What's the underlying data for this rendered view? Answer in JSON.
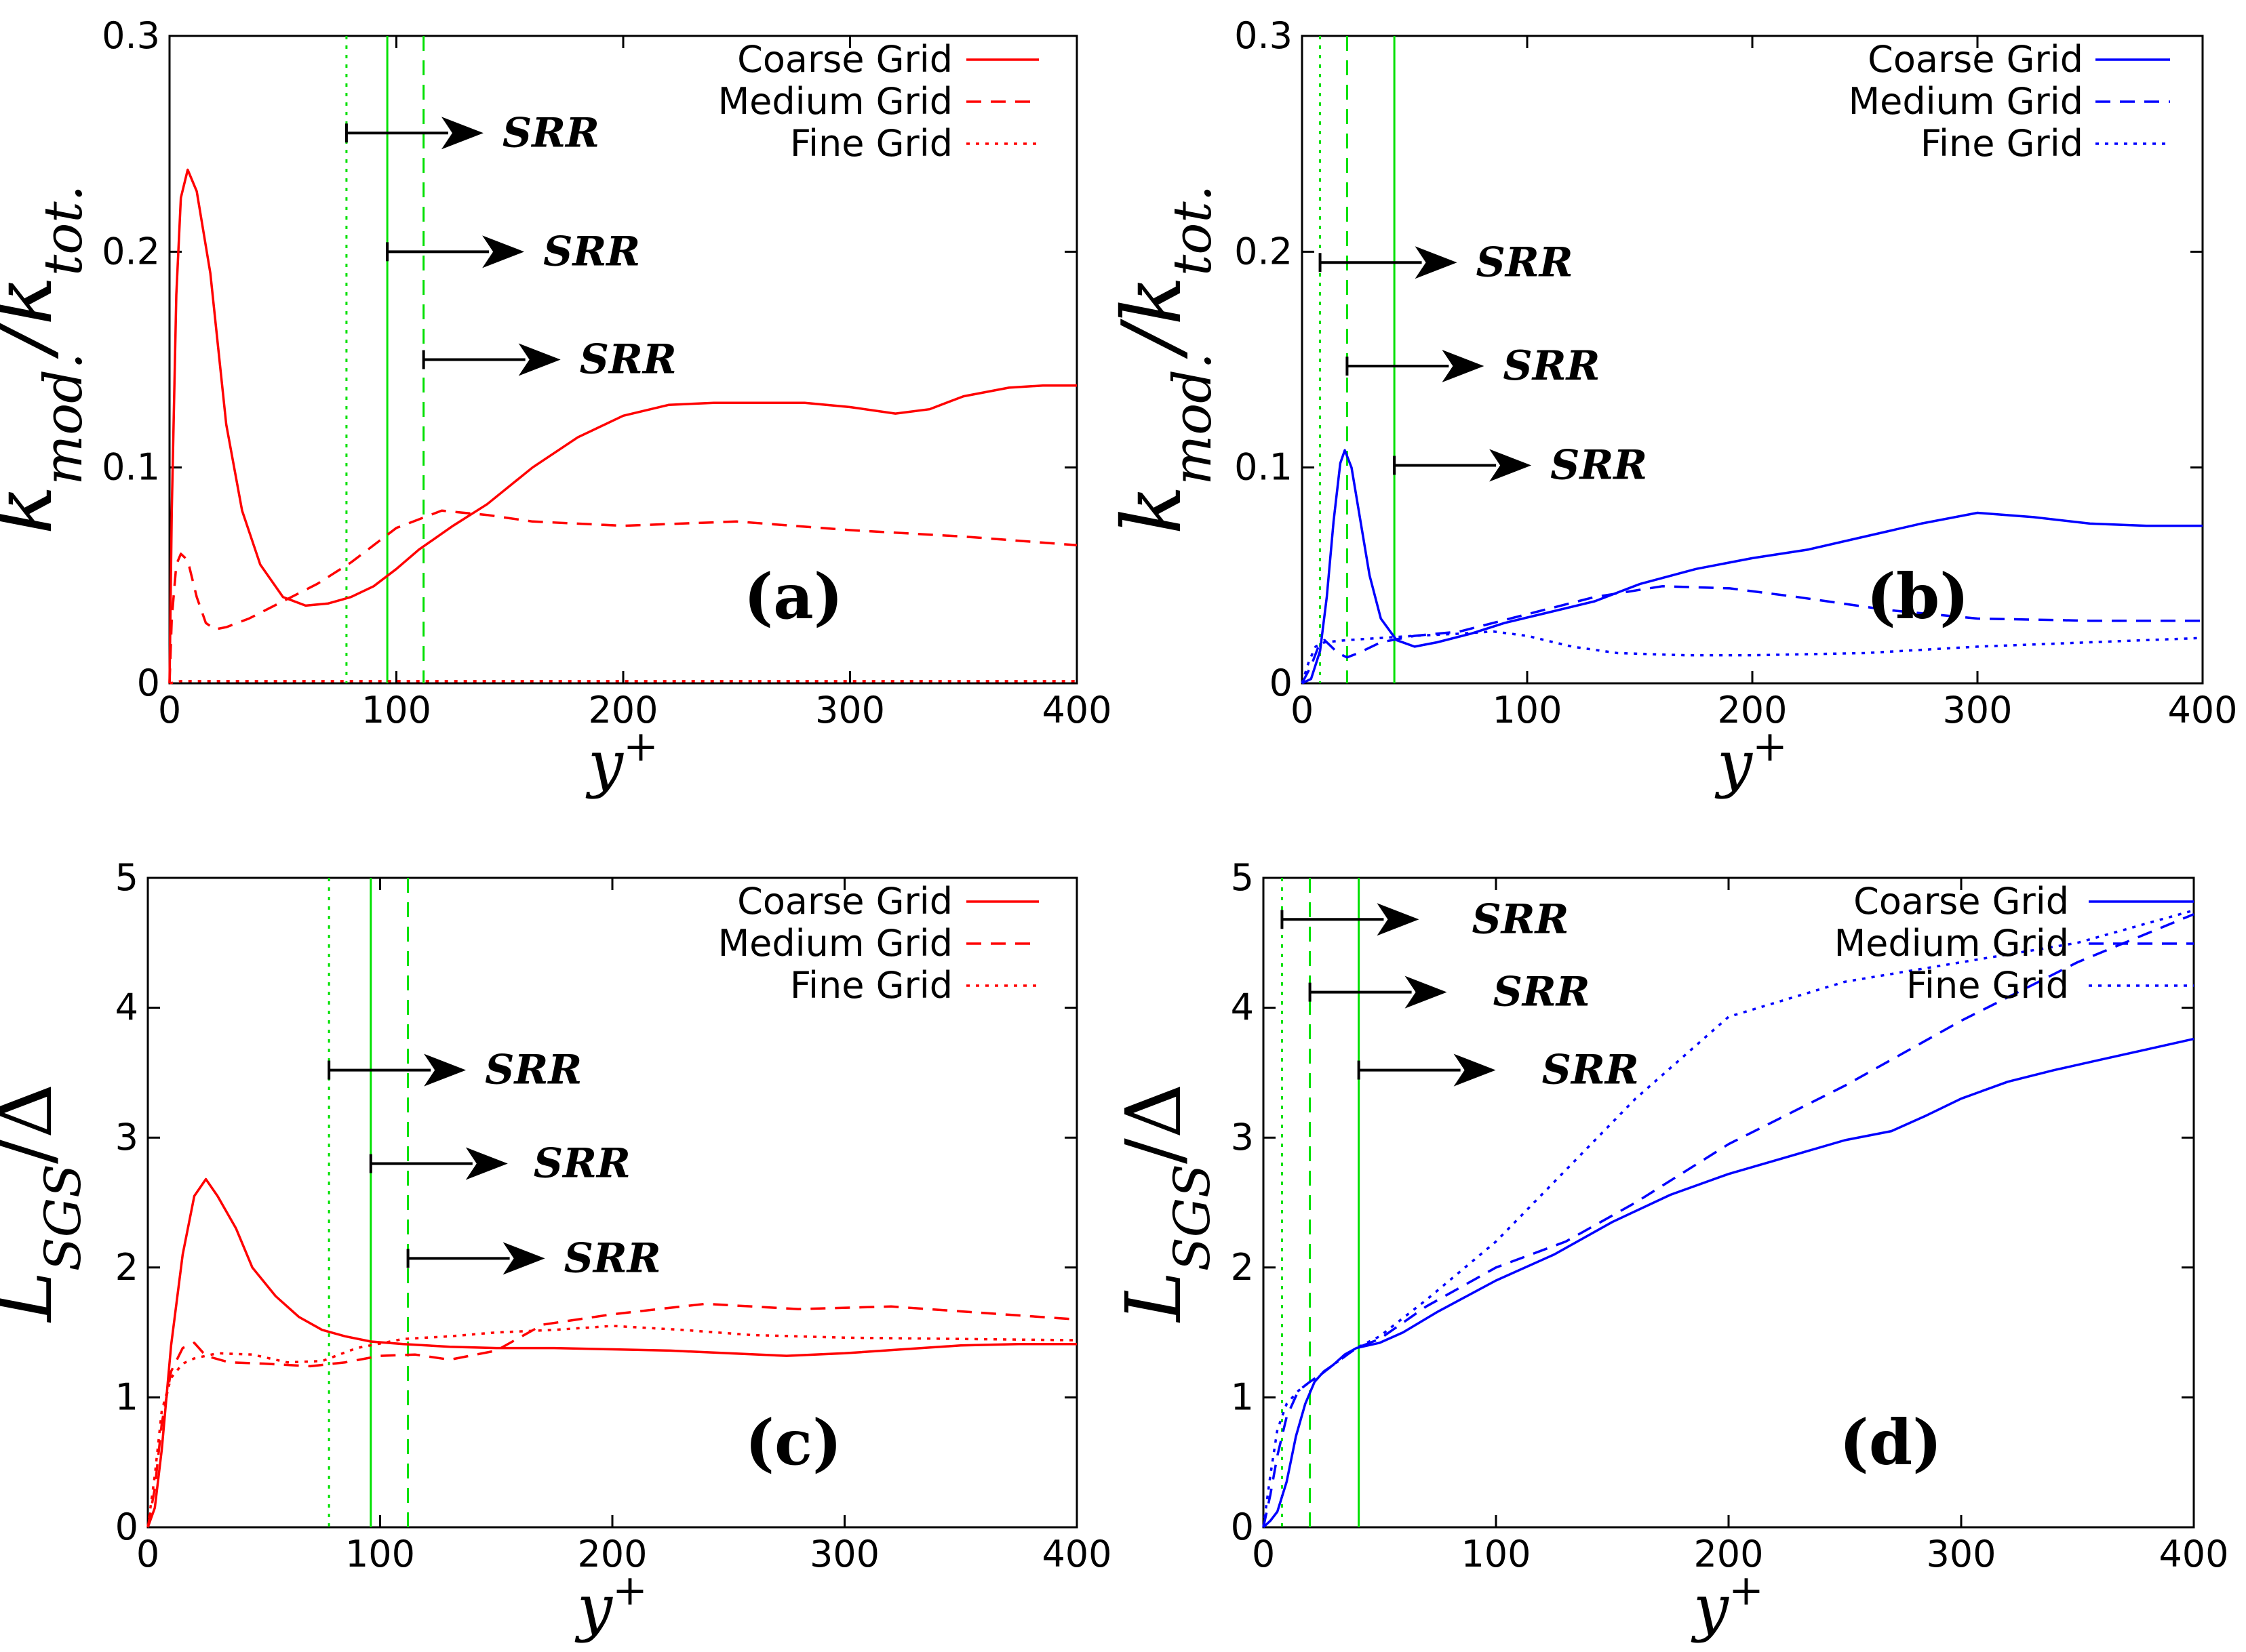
{
  "figure": {
    "colors": {
      "red": "#ff0000",
      "blue": "#0000ff",
      "green": "#00e000",
      "black": "#000000"
    },
    "grid_labels": [
      "Coarse Grid",
      "Medium Grid",
      "Fine Grid"
    ],
    "srr_label": "SRR"
  },
  "chart_data": [
    {
      "id": "a",
      "type": "line",
      "panel_label": "(a)",
      "ylabel": "k_{mod.}/k_{tot.}",
      "xlabel": "y^+",
      "xlim": [
        0,
        400
      ],
      "ylim": [
        0,
        0.3
      ],
      "xticks": [
        0,
        100,
        200,
        300,
        400
      ],
      "yticks": [
        0,
        0.1,
        0.2,
        0.3
      ],
      "ytick_labels": [
        "0",
        "0.1",
        "0.2",
        "0.3"
      ],
      "color": "#ff0000",
      "series": [
        {
          "name": "Coarse Grid",
          "dash": "solid",
          "x": [
            0,
            1,
            3,
            5,
            8,
            12,
            18,
            25,
            32,
            40,
            50,
            60,
            70,
            80,
            90,
            100,
            110,
            125,
            140,
            160,
            180,
            200,
            220,
            240,
            260,
            280,
            300,
            320,
            335,
            350,
            370,
            385,
            400
          ],
          "y": [
            0,
            0.08,
            0.18,
            0.225,
            0.238,
            0.228,
            0.19,
            0.12,
            0.08,
            0.055,
            0.04,
            0.036,
            0.037,
            0.04,
            0.045,
            0.053,
            0.062,
            0.073,
            0.083,
            0.1,
            0.114,
            0.124,
            0.129,
            0.13,
            0.13,
            0.13,
            0.128,
            0.125,
            0.127,
            0.133,
            0.137,
            0.138,
            0.138
          ]
        },
        {
          "name": "Medium Grid",
          "dash": "dashed",
          "x": [
            0,
            1,
            3,
            5,
            8,
            12,
            16,
            20,
            25,
            35,
            50,
            65,
            80,
            100,
            120,
            140,
            160,
            200,
            250,
            300,
            350,
            400
          ],
          "y": [
            0,
            0.03,
            0.055,
            0.06,
            0.057,
            0.04,
            0.028,
            0.025,
            0.026,
            0.03,
            0.038,
            0.046,
            0.056,
            0.072,
            0.08,
            0.078,
            0.075,
            0.073,
            0.075,
            0.071,
            0.068,
            0.064
          ]
        },
        {
          "name": "Fine Grid",
          "dash": "dotted",
          "x": [
            0,
            5,
            50,
            100,
            200,
            300,
            400
          ],
          "y": [
            0,
            0.001,
            0.001,
            0.001,
            0.001,
            0.001,
            0.001
          ]
        }
      ],
      "srr_lines": [
        {
          "x": 78,
          "dash": "dotted",
          "arrow_y": 0.255
        },
        {
          "x": 96,
          "dash": "solid",
          "arrow_y": 0.2
        },
        {
          "x": 112,
          "dash": "dashed",
          "arrow_y": 0.15
        }
      ],
      "legend_position": "top-right"
    },
    {
      "id": "b",
      "type": "line",
      "panel_label": "(b)",
      "ylabel": "k_{mod.}/k_{tot.}",
      "xlabel": "y^+",
      "xlim": [
        0,
        400
      ],
      "ylim": [
        0,
        0.3
      ],
      "xticks": [
        0,
        100,
        200,
        300,
        400
      ],
      "yticks": [
        0,
        0.1,
        0.2,
        0.3
      ],
      "ytick_labels": [
        "0",
        "0.1",
        "0.2",
        "0.3"
      ],
      "color": "#0000ff",
      "series": [
        {
          "name": "Coarse Grid",
          "dash": "solid",
          "x": [
            0,
            4,
            8,
            11,
            14,
            17,
            19,
            22,
            26,
            30,
            35,
            42,
            50,
            60,
            75,
            90,
            110,
            130,
            150,
            175,
            200,
            225,
            250,
            275,
            300,
            325,
            350,
            375,
            400
          ],
          "y": [
            0,
            0.002,
            0.015,
            0.04,
            0.075,
            0.102,
            0.108,
            0.1,
            0.075,
            0.05,
            0.03,
            0.02,
            0.017,
            0.019,
            0.023,
            0.028,
            0.033,
            0.038,
            0.046,
            0.053,
            0.058,
            0.062,
            0.068,
            0.074,
            0.079,
            0.077,
            0.074,
            0.073,
            0.073
          ]
        },
        {
          "name": "Medium Grid",
          "dash": "dashed",
          "x": [
            0,
            4,
            8,
            10,
            13,
            16,
            20,
            25,
            35,
            50,
            70,
            100,
            130,
            160,
            190,
            220,
            260,
            300,
            350,
            400
          ],
          "y": [
            0,
            0.008,
            0.019,
            0.02,
            0.017,
            0.014,
            0.012,
            0.014,
            0.019,
            0.022,
            0.024,
            0.032,
            0.04,
            0.045,
            0.044,
            0.04,
            0.034,
            0.03,
            0.029,
            0.029
          ]
        },
        {
          "name": "Fine Grid",
          "dash": "dotted",
          "x": [
            0,
            3,
            6,
            10,
            20,
            35,
            50,
            70,
            85,
            100,
            120,
            140,
            170,
            200,
            250,
            300,
            350,
            400
          ],
          "y": [
            0,
            0.01,
            0.017,
            0.019,
            0.02,
            0.021,
            0.022,
            0.023,
            0.024,
            0.022,
            0.017,
            0.014,
            0.013,
            0.013,
            0.014,
            0.017,
            0.019,
            0.021
          ]
        }
      ],
      "srr_lines": [
        {
          "x": 8,
          "dash": "dotted",
          "arrow_y": 0.195
        },
        {
          "x": 20,
          "dash": "dashed",
          "arrow_y": 0.147
        },
        {
          "x": 41,
          "dash": "solid",
          "arrow_y": 0.101
        }
      ],
      "legend_position": "top-right"
    },
    {
      "id": "c",
      "type": "line",
      "panel_label": "(c)",
      "ylabel": "L_{SGS}/Δ",
      "xlabel": "y^+",
      "xlim": [
        0,
        400
      ],
      "ylim": [
        0,
        5
      ],
      "xticks": [
        0,
        100,
        200,
        300,
        400
      ],
      "yticks": [
        0,
        1,
        2,
        3,
        4,
        5
      ],
      "ytick_labels": [
        "0",
        "1",
        "2",
        "3",
        "4",
        "5"
      ],
      "color": "#ff0000",
      "series": [
        {
          "name": "Coarse Grid",
          "dash": "solid",
          "x": [
            0,
            3,
            6,
            10,
            15,
            20,
            25,
            30,
            38,
            45,
            55,
            65,
            75,
            85,
            96,
            110,
            130,
            150,
            175,
            200,
            225,
            250,
            275,
            300,
            325,
            350,
            375,
            400
          ],
          "y": [
            0,
            0.15,
            0.6,
            1.4,
            2.1,
            2.55,
            2.68,
            2.55,
            2.3,
            2.0,
            1.78,
            1.62,
            1.52,
            1.47,
            1.43,
            1.41,
            1.39,
            1.38,
            1.38,
            1.37,
            1.36,
            1.34,
            1.32,
            1.34,
            1.37,
            1.4,
            1.41,
            1.41
          ]
        },
        {
          "name": "Medium Grid",
          "dash": "dashed",
          "x": [
            0,
            3,
            6,
            10,
            15,
            20,
            25,
            35,
            50,
            70,
            85,
            100,
            115,
            130,
            150,
            170,
            200,
            240,
            280,
            320,
            360,
            400
          ],
          "y": [
            0,
            0.3,
            0.8,
            1.2,
            1.38,
            1.42,
            1.32,
            1.27,
            1.26,
            1.24,
            1.27,
            1.32,
            1.33,
            1.29,
            1.36,
            1.56,
            1.64,
            1.72,
            1.68,
            1.7,
            1.65,
            1.6
          ]
        },
        {
          "name": "Fine Grid",
          "dash": "dotted",
          "x": [
            0,
            3,
            6,
            10,
            15,
            20,
            30,
            45,
            60,
            75,
            90,
            110,
            130,
            150,
            175,
            200,
            230,
            260,
            300,
            350,
            400
          ],
          "y": [
            0,
            0.4,
            0.9,
            1.15,
            1.26,
            1.3,
            1.34,
            1.33,
            1.27,
            1.28,
            1.38,
            1.45,
            1.47,
            1.5,
            1.52,
            1.55,
            1.52,
            1.48,
            1.46,
            1.45,
            1.44
          ]
        }
      ],
      "srr_lines": [
        {
          "x": 78,
          "dash": "dotted",
          "arrow_y": 3.52
        },
        {
          "x": 96,
          "dash": "solid",
          "arrow_y": 2.8
        },
        {
          "x": 112,
          "dash": "dashed",
          "arrow_y": 2.07
        }
      ],
      "legend_position": "top-right"
    },
    {
      "id": "d",
      "type": "line",
      "panel_label": "(d)",
      "ylabel": "L_{SGS}/Δ",
      "xlabel": "y^+",
      "xlim": [
        0,
        400
      ],
      "ylim": [
        0,
        5
      ],
      "xticks": [
        0,
        100,
        200,
        300,
        400
      ],
      "yticks": [
        0,
        1,
        2,
        3,
        4,
        5
      ],
      "ytick_labels": [
        "0",
        "1",
        "2",
        "3",
        "4",
        "5"
      ],
      "color": "#0000ff",
      "series": [
        {
          "name": "Coarse Grid",
          "dash": "solid",
          "x": [
            0,
            3,
            6,
            10,
            14,
            18,
            22,
            26,
            30,
            35,
            40,
            50,
            60,
            75,
            100,
            125,
            150,
            175,
            200,
            225,
            250,
            270,
            285,
            300,
            320,
            340,
            360,
            380,
            400
          ],
          "y": [
            0,
            0.05,
            0.12,
            0.35,
            0.7,
            0.95,
            1.12,
            1.2,
            1.25,
            1.33,
            1.38,
            1.42,
            1.5,
            1.66,
            1.9,
            2.1,
            2.35,
            2.56,
            2.72,
            2.85,
            2.98,
            3.05,
            3.17,
            3.3,
            3.43,
            3.52,
            3.6,
            3.68,
            3.76
          ]
        },
        {
          "name": "Medium Grid",
          "dash": "dashed",
          "x": [
            0,
            3,
            6,
            10,
            15,
            20,
            25,
            30,
            40,
            50,
            70,
            100,
            130,
            160,
            200,
            250,
            300,
            350,
            400
          ],
          "y": [
            0,
            0.25,
            0.55,
            0.85,
            1.05,
            1.12,
            1.18,
            1.25,
            1.38,
            1.45,
            1.7,
            2.0,
            2.2,
            2.5,
            2.95,
            3.4,
            3.9,
            4.35,
            4.72
          ]
        },
        {
          "name": "Fine Grid",
          "dash": "dotted",
          "x": [
            0,
            3,
            6,
            10,
            15,
            20,
            25,
            30,
            40,
            50,
            70,
            100,
            130,
            160,
            200,
            250,
            300,
            350,
            400
          ],
          "y": [
            0,
            0.4,
            0.75,
            0.95,
            1.05,
            1.12,
            1.18,
            1.25,
            1.38,
            1.47,
            1.75,
            2.2,
            2.75,
            3.3,
            3.93,
            4.2,
            4.35,
            4.5,
            4.75
          ]
        }
      ],
      "srr_lines": [
        {
          "x": 8,
          "dash": "dotted",
          "arrow_y": 4.68
        },
        {
          "x": 20,
          "dash": "dashed",
          "arrow_y": 4.12
        },
        {
          "x": 41,
          "dash": "solid",
          "arrow_y": 3.52
        }
      ],
      "legend_position": "top-right"
    }
  ]
}
